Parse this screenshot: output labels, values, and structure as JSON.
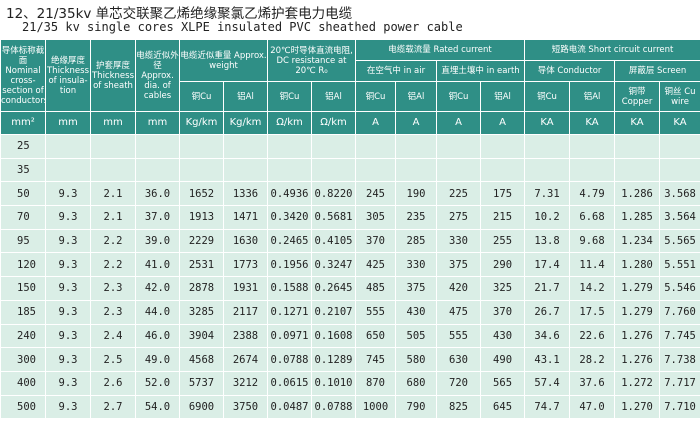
{
  "title": {
    "line1": "12、21/35kv  单芯交联聚乙烯绝缘聚氯乙烯护套电力电缆",
    "line2": "21/35 kv single cores XLPE insulated  PVC sheathed power cable"
  },
  "header": {
    "nominal_section": "导体标称截面 Nominal cross-section of conductors",
    "insulation": "绝缘厚度 Thickness of insula-tion",
    "sheath": "护套厚度 Thickness of sheath",
    "outer_dia": "电缆近似外径 Approx. dia. of cables",
    "weight": "电缆近似重量 Approx. weight",
    "weight_cu": "铜Cu",
    "weight_al": "铝Al",
    "resistance": "20℃时导体直流电阻, DC resistance at 20℃ R₀",
    "res_cu": "铜Cu",
    "res_al": "铝Al",
    "rated_current": "电缆载流量 Rated current",
    "in_air": "在空气中 in air",
    "in_earth": "直埋土壤中 in earth",
    "air_cu": "铜Cu",
    "air_al": "铝Al",
    "earth_cu": "铜Cu",
    "earth_al": "铝Al",
    "short_circuit": "短路电流 Short circuit current",
    "sc_conductor": "导体 Conductor",
    "sc_cu": "铜Cu",
    "sc_al": "铝Al",
    "sc_screen": "屏蔽层 Screen",
    "copper_tape": "铜带 Copper",
    "cu_wire": "铜丝 Cu wire"
  },
  "units": [
    "mm²",
    "mm",
    "mm",
    "mm",
    "Kg/km",
    "Kg/km",
    "Ω/km",
    "Ω/km",
    "A",
    "A",
    "A",
    "A",
    "KA",
    "KA",
    "KA",
    "KA"
  ],
  "rows": [
    [
      "25",
      "",
      "",
      "",
      "",
      "",
      "",
      "",
      "",
      "",
      "",
      "",
      "",
      "",
      "",
      ""
    ],
    [
      "35",
      "",
      "",
      "",
      "",
      "",
      "",
      "",
      "",
      "",
      "",
      "",
      "",
      "",
      "",
      ""
    ],
    [
      "50",
      "9.3",
      "2.1",
      "36.0",
      "1652",
      "1336",
      "0.4936",
      "0.8220",
      "245",
      "190",
      "225",
      "175",
      "7.31",
      "4.79",
      "1.286",
      "3.568"
    ],
    [
      "70",
      "9.3",
      "2.1",
      "37.0",
      "1913",
      "1471",
      "0.3420",
      "0.5681",
      "305",
      "235",
      "275",
      "215",
      "10.2",
      "6.68",
      "1.285",
      "3.564"
    ],
    [
      "95",
      "9.3",
      "2.2",
      "39.0",
      "2229",
      "1630",
      "0.2465",
      "0.4105",
      "370",
      "285",
      "330",
      "255",
      "13.8",
      "9.68",
      "1.234",
      "5.565"
    ],
    [
      "120",
      "9.3",
      "2.2",
      "41.0",
      "2531",
      "1773",
      "0.1956",
      "0.3247",
      "425",
      "330",
      "375",
      "290",
      "17.4",
      "11.4",
      "1.280",
      "5.551"
    ],
    [
      "150",
      "9.3",
      "2.3",
      "42.0",
      "2878",
      "1931",
      "0.1588",
      "0.2645",
      "485",
      "375",
      "420",
      "325",
      "21.7",
      "14.2",
      "1.279",
      "5.546"
    ],
    [
      "185",
      "9.3",
      "2.3",
      "44.0",
      "3285",
      "2117",
      "0.1271",
      "0.2107",
      "555",
      "430",
      "475",
      "370",
      "26.7",
      "17.5",
      "1.279",
      "7.760"
    ],
    [
      "240",
      "9.3",
      "2.4",
      "46.0",
      "3904",
      "2388",
      "0.0971",
      "0.1608",
      "650",
      "505",
      "555",
      "430",
      "34.6",
      "22.6",
      "1.276",
      "7.745"
    ],
    [
      "300",
      "9.3",
      "2.5",
      "49.0",
      "4568",
      "2674",
      "0.0788",
      "0.1289",
      "745",
      "580",
      "630",
      "490",
      "43.1",
      "28.2",
      "1.276",
      "7.738"
    ],
    [
      "400",
      "9.3",
      "2.6",
      "52.0",
      "5737",
      "3212",
      "0.0615",
      "0.1010",
      "870",
      "680",
      "720",
      "565",
      "57.4",
      "37.6",
      "1.272",
      "7.717"
    ],
    [
      "500",
      "9.3",
      "2.7",
      "54.0",
      "6900",
      "3750",
      "0.0487",
      "0.0788",
      "1000",
      "790",
      "825",
      "645",
      "74.7",
      "47.0",
      "1.270",
      "7.710"
    ]
  ],
  "colors": {
    "header_bg": "#2f8f86",
    "body_bg": "#daeee6"
  }
}
